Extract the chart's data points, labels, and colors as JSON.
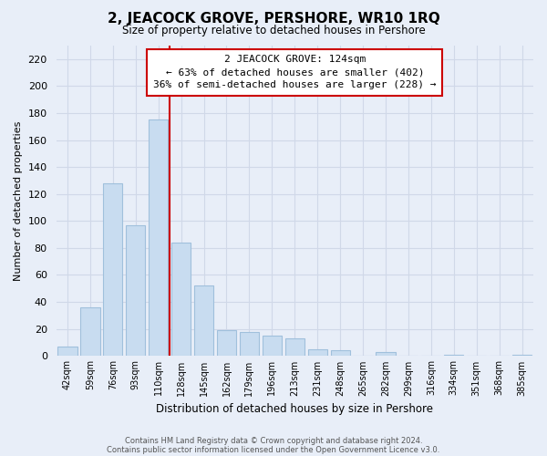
{
  "title": "2, JEACOCK GROVE, PERSHORE, WR10 1RQ",
  "subtitle": "Size of property relative to detached houses in Pershore",
  "xlabel": "Distribution of detached houses by size in Pershore",
  "ylabel": "Number of detached properties",
  "bar_labels": [
    "42sqm",
    "59sqm",
    "76sqm",
    "93sqm",
    "110sqm",
    "128sqm",
    "145sqm",
    "162sqm",
    "179sqm",
    "196sqm",
    "213sqm",
    "231sqm",
    "248sqm",
    "265sqm",
    "282sqm",
    "299sqm",
    "316sqm",
    "334sqm",
    "351sqm",
    "368sqm",
    "385sqm"
  ],
  "bar_heights": [
    7,
    36,
    128,
    97,
    175,
    84,
    52,
    19,
    18,
    15,
    13,
    5,
    4,
    0,
    3,
    0,
    0,
    1,
    0,
    0,
    1
  ],
  "bar_color": "#c8dcf0",
  "bar_edge_color": "#a0c0dc",
  "highlight_line_index": 5,
  "highlight_line_color": "#cc0000",
  "ylim": [
    0,
    230
  ],
  "yticks": [
    0,
    20,
    40,
    60,
    80,
    100,
    120,
    140,
    160,
    180,
    200,
    220
  ],
  "annotation_title": "2 JEACOCK GROVE: 124sqm",
  "annotation_line1": "← 63% of detached houses are smaller (402)",
  "annotation_line2": "36% of semi-detached houses are larger (228) →",
  "footer_line1": "Contains HM Land Registry data © Crown copyright and database right 2024.",
  "footer_line2": "Contains public sector information licensed under the Open Government Licence v3.0.",
  "bg_color": "#e8eef8",
  "plot_bg_color": "#e8eef8",
  "grid_color": "#d0d8e8"
}
